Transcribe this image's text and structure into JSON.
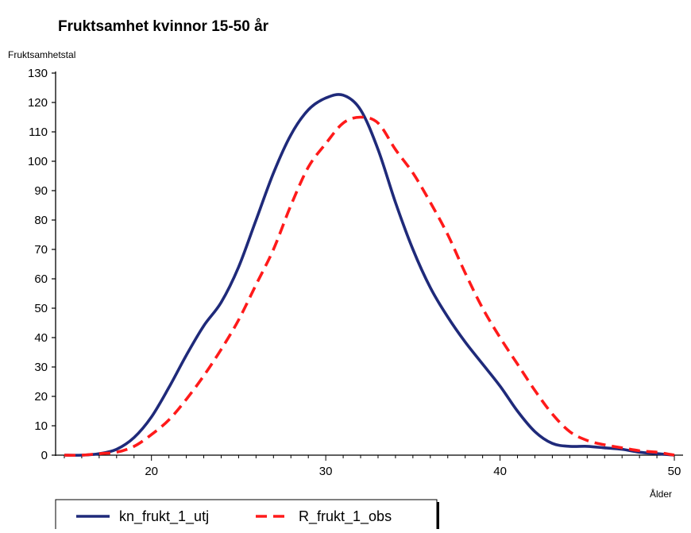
{
  "chart_data": {
    "type": "line",
    "title": "Fruktsamhet kvinnor 15-50 år",
    "ylabel": "Fruktsamhetstal",
    "xlabel": "Ålder",
    "xlim": [
      14.5,
      50.5
    ],
    "ylim": [
      0,
      130
    ],
    "xticks": [
      20,
      30,
      40,
      50
    ],
    "yticks": [
      0,
      10,
      20,
      30,
      40,
      50,
      60,
      70,
      80,
      90,
      100,
      110,
      120,
      130
    ],
    "grid": false,
    "legend_position": "bottom-left",
    "series": [
      {
        "name": "kn_frukt_1_utj",
        "color": "#1f2a7a",
        "dash": "solid",
        "x": [
          15,
          16,
          17,
          18,
          19,
          20,
          21,
          22,
          23,
          24,
          25,
          26,
          27,
          28,
          29,
          30,
          31,
          32,
          33,
          34,
          35,
          36,
          37,
          38,
          39,
          40,
          41,
          42,
          43,
          44,
          45,
          46,
          47,
          48,
          49,
          50
        ],
        "y": [
          0,
          0,
          0.5,
          2,
          6,
          13,
          23,
          34,
          44,
          52,
          64,
          80,
          96,
          109,
          117.5,
          121.5,
          122.5,
          117.5,
          104,
          86,
          70,
          57,
          47,
          38.5,
          31,
          23.5,
          15,
          8,
          4,
          3,
          3,
          2.5,
          2,
          1,
          0.5,
          0
        ]
      },
      {
        "name": "R_frukt_1_obs",
        "color": "#ff1a1a",
        "dash": "dashed",
        "x": [
          15,
          16,
          17,
          18,
          19,
          20,
          21,
          22,
          23,
          24,
          25,
          26,
          27,
          28,
          29,
          30,
          31,
          32,
          33,
          34,
          35,
          36,
          37,
          38,
          39,
          40,
          41,
          42,
          43,
          44,
          45,
          46,
          47,
          48,
          49,
          50
        ],
        "y": [
          0,
          0,
          0.5,
          1,
          3,
          7,
          12,
          19,
          27,
          36,
          46,
          58,
          70,
          85,
          98,
          106,
          113,
          115,
          113,
          104,
          96,
          86,
          75,
          62,
          50,
          40,
          31,
          22,
          14,
          8,
          5,
          3.5,
          2.5,
          1.5,
          1,
          0
        ]
      }
    ]
  }
}
